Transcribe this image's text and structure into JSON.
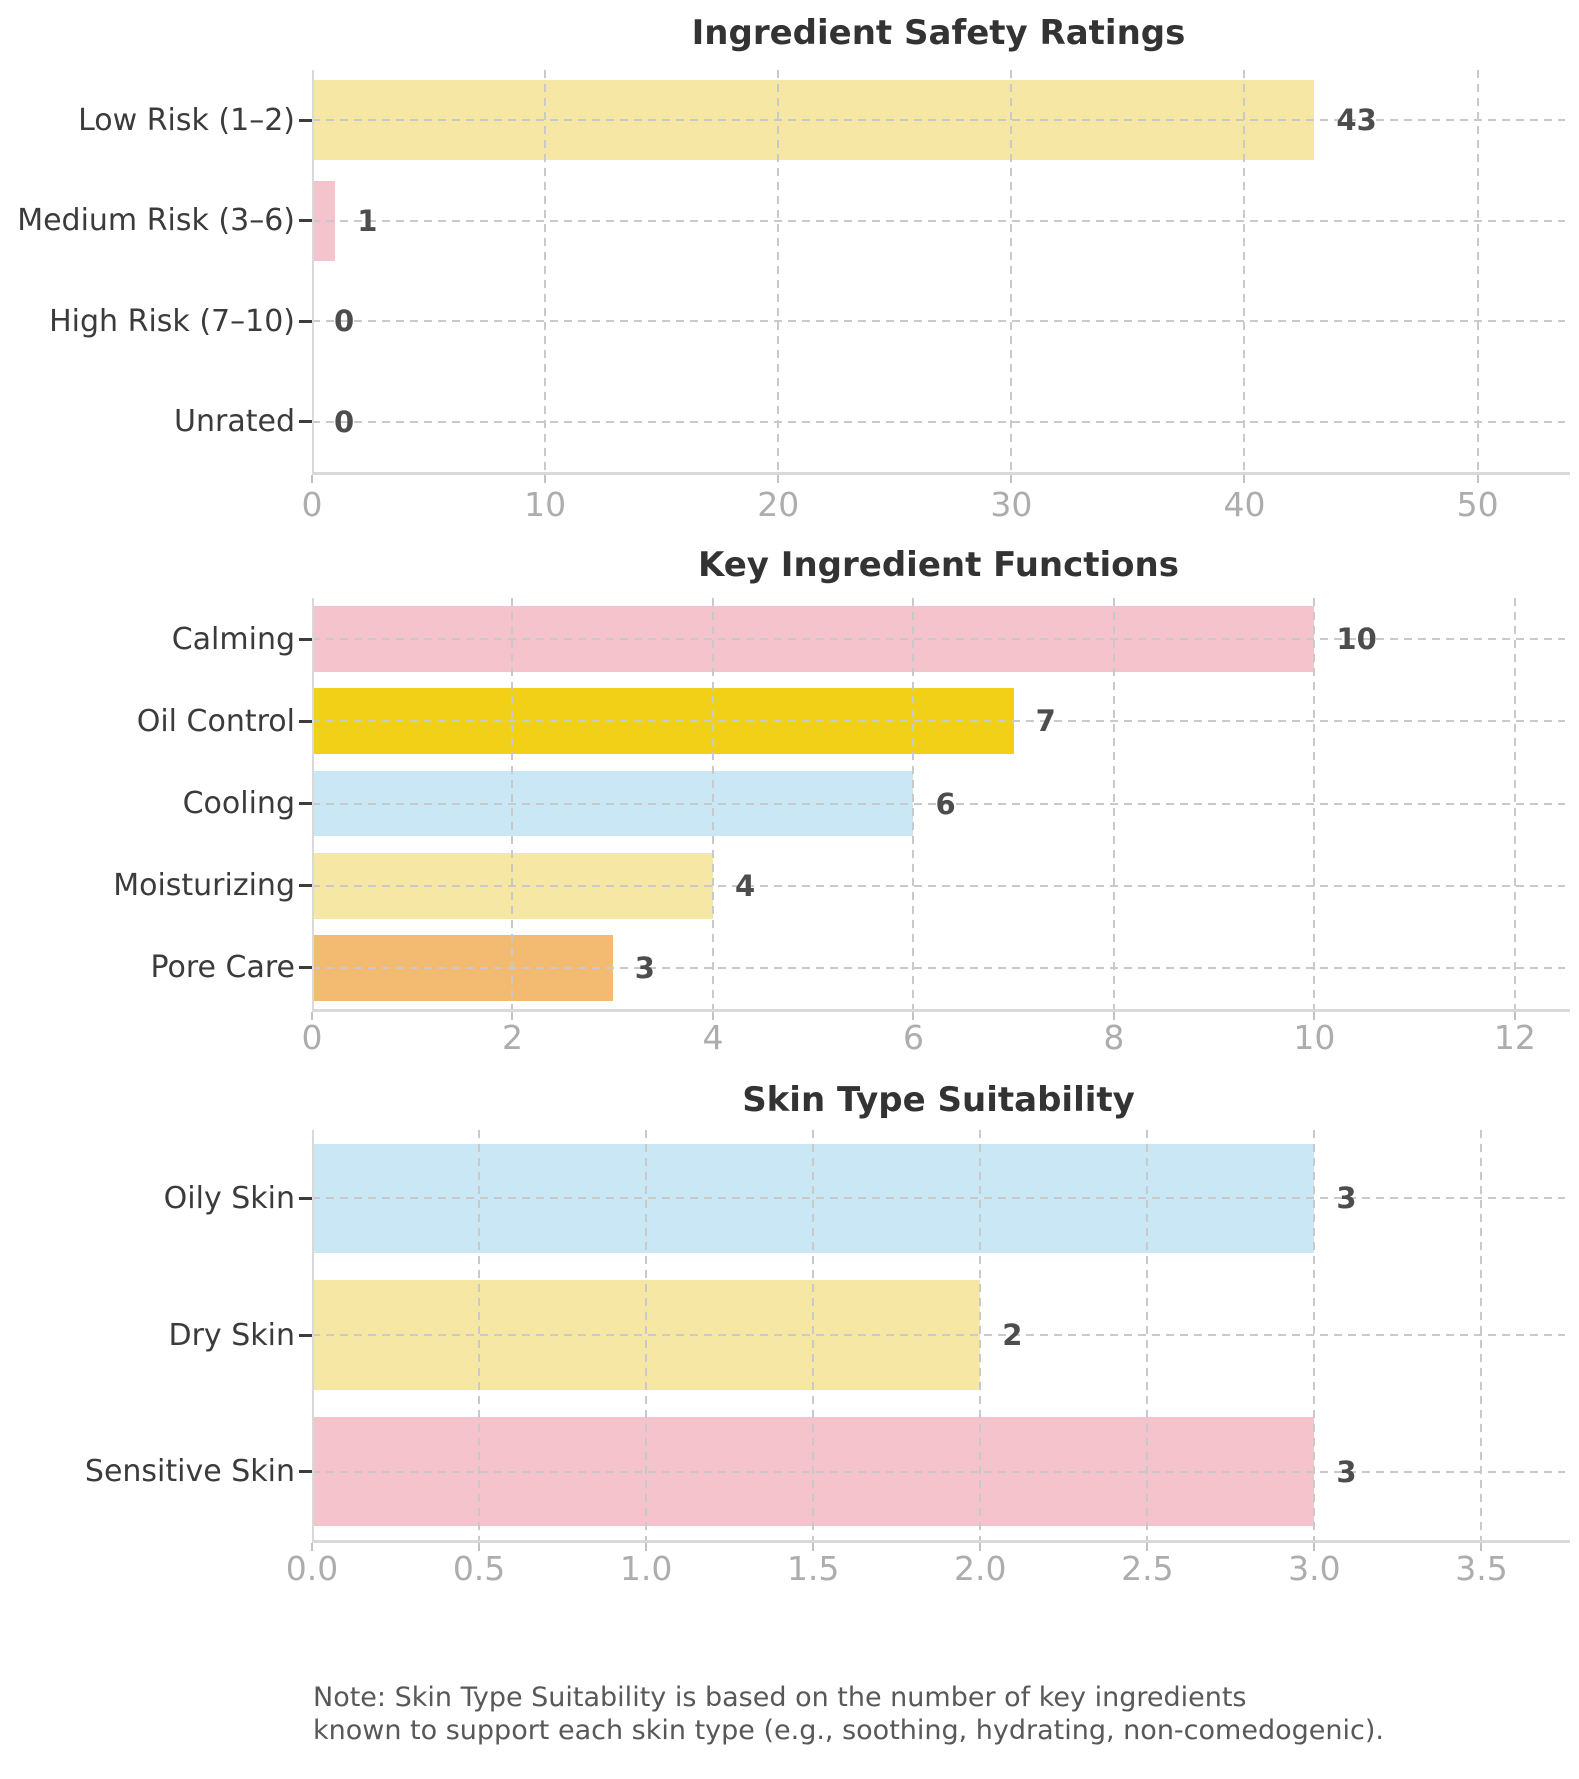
{
  "chart_data": [
    {
      "type": "bar",
      "orientation": "horizontal",
      "title": "Ingredient Safety Ratings",
      "categories": [
        "Low Risk (1–2)",
        "Medium Risk (3–6)",
        "High Risk (7–10)",
        "Unrated"
      ],
      "values": [
        43,
        1,
        0,
        0
      ],
      "value_labels": [
        "43",
        "1",
        "0",
        "0"
      ],
      "bar_colors": [
        "#f6e7a4",
        "#f5c3cb",
        "#f5c3cb",
        "#f5c3cb"
      ],
      "xticks": [
        0,
        10,
        20,
        30,
        40,
        50
      ],
      "xtick_labels": [
        "0",
        "10",
        "20",
        "30",
        "40",
        "50"
      ],
      "xlim": [
        0,
        53.75
      ],
      "grid": true,
      "legend": false
    },
    {
      "type": "bar",
      "orientation": "horizontal",
      "title": "Key Ingredient Functions",
      "categories": [
        "Calming",
        "Oil Control",
        "Cooling",
        "Moisturizing",
        "Pore Care"
      ],
      "values": [
        10,
        7,
        6,
        4,
        3
      ],
      "value_labels": [
        "10",
        "7",
        "6",
        "4",
        "3"
      ],
      "bar_colors": [
        "#f5c3cb",
        "#f2d018",
        "#c9e7f4",
        "#f6e7a4",
        "#f3bb72"
      ],
      "xticks": [
        0,
        2,
        4,
        6,
        8,
        10,
        12
      ],
      "xtick_labels": [
        "0",
        "2",
        "4",
        "6",
        "8",
        "10",
        "12"
      ],
      "xlim": [
        0,
        12.5
      ],
      "grid": true,
      "legend": false
    },
    {
      "type": "bar",
      "orientation": "horizontal",
      "title": "Skin Type Suitability",
      "categories": [
        "Oily Skin",
        "Dry Skin",
        "Sensitive Skin"
      ],
      "values": [
        3,
        2,
        3
      ],
      "value_labels": [
        "3",
        "2",
        "3"
      ],
      "bar_colors": [
        "#c9e7f4",
        "#f6e7a4",
        "#f5c3cb"
      ],
      "xticks": [
        0.0,
        0.5,
        1.0,
        1.5,
        2.0,
        2.5,
        3.0,
        3.5
      ],
      "xtick_labels": [
        "0.0",
        "0.5",
        "1.0",
        "1.5",
        "2.0",
        "2.5",
        "3.0",
        "3.5"
      ],
      "xlim": [
        0,
        3.75
      ],
      "grid": true,
      "legend": false
    }
  ],
  "note": {
    "line1": "Note: Skin Type Suitability is based on the number of key ingredients",
    "line2": "known to support each skin type (e.g., soothing, hydrating, non-comedogenic)."
  }
}
